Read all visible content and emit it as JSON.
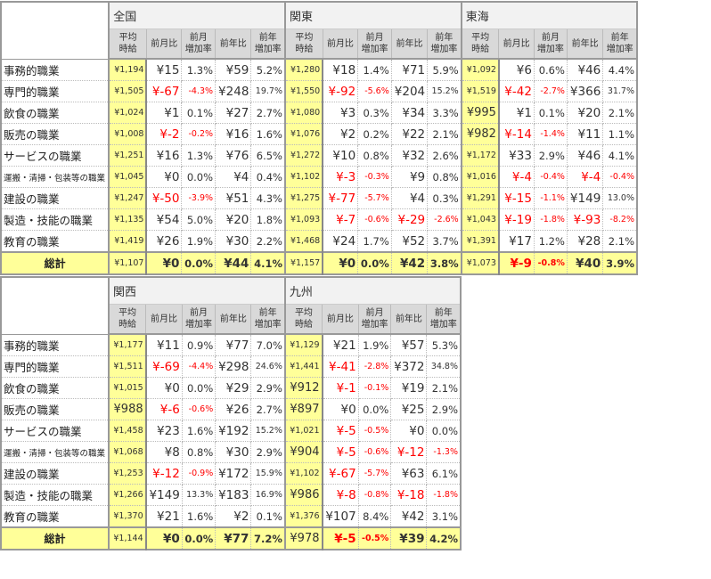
{
  "columns": [
    "平均\n時給",
    "前月比",
    "前月\n増加率",
    "前年比",
    "前年\n増加率"
  ],
  "row_labels": [
    "事務的職業",
    "専門的職業",
    "飲食の職業",
    "販売の職業",
    "サービスの職業",
    "運搬・清掃・包装等の職業",
    "建設の職業",
    "製造・技能の職業",
    "教育の職業",
    "総計"
  ],
  "tables": [
    {
      "regions": [
        {
          "name": "全国",
          "rows": [
            [
              "¥1,194",
              "¥15",
              "1.3%",
              "¥59",
              "5.2%"
            ],
            [
              "¥1,505",
              "¥-67",
              "-4.3%",
              "¥248",
              "19.7%"
            ],
            [
              "¥1,024",
              "¥1",
              "0.1%",
              "¥27",
              "2.7%"
            ],
            [
              "¥1,008",
              "¥-2",
              "-0.2%",
              "¥16",
              "1.6%"
            ],
            [
              "¥1,251",
              "¥16",
              "1.3%",
              "¥76",
              "6.5%"
            ],
            [
              "¥1,045",
              "¥0",
              "0.0%",
              "¥4",
              "0.4%"
            ],
            [
              "¥1,247",
              "¥-50",
              "-3.9%",
              "¥51",
              "4.3%"
            ],
            [
              "¥1,135",
              "¥54",
              "5.0%",
              "¥20",
              "1.8%"
            ],
            [
              "¥1,419",
              "¥26",
              "1.9%",
              "¥30",
              "2.2%"
            ],
            [
              "¥1,107",
              "¥0",
              "0.0%",
              "¥44",
              "4.1%"
            ]
          ]
        },
        {
          "name": "関東",
          "rows": [
            [
              "¥1,280",
              "¥18",
              "1.4%",
              "¥71",
              "5.9%"
            ],
            [
              "¥1,550",
              "¥-92",
              "-5.6%",
              "¥204",
              "15.2%"
            ],
            [
              "¥1,080",
              "¥3",
              "0.3%",
              "¥34",
              "3.3%"
            ],
            [
              "¥1,076",
              "¥2",
              "0.2%",
              "¥22",
              "2.1%"
            ],
            [
              "¥1,272",
              "¥10",
              "0.8%",
              "¥32",
              "2.6%"
            ],
            [
              "¥1,102",
              "¥-3",
              "-0.3%",
              "¥9",
              "0.8%"
            ],
            [
              "¥1,275",
              "¥-77",
              "-5.7%",
              "¥4",
              "0.3%"
            ],
            [
              "¥1,093",
              "¥-7",
              "-0.6%",
              "¥-29",
              "-2.6%"
            ],
            [
              "¥1,468",
              "¥24",
              "1.7%",
              "¥52",
              "3.7%"
            ],
            [
              "¥1,157",
              "¥0",
              "0.0%",
              "¥42",
              "3.8%"
            ]
          ]
        },
        {
          "name": "東海",
          "rows": [
            [
              "¥1,092",
              "¥6",
              "0.6%",
              "¥46",
              "4.4%"
            ],
            [
              "¥1,519",
              "¥-42",
              "-2.7%",
              "¥366",
              "31.7%"
            ],
            [
              "¥995",
              "¥1",
              "0.1%",
              "¥20",
              "2.1%"
            ],
            [
              "¥982",
              "¥-14",
              "-1.4%",
              "¥11",
              "1.1%"
            ],
            [
              "¥1,172",
              "¥33",
              "2.9%",
              "¥46",
              "4.1%"
            ],
            [
              "¥1,016",
              "¥-4",
              "-0.4%",
              "¥-4",
              "-0.4%"
            ],
            [
              "¥1,291",
              "¥-15",
              "-1.1%",
              "¥149",
              "13.0%"
            ],
            [
              "¥1,043",
              "¥-19",
              "-1.8%",
              "¥-93",
              "-8.2%"
            ],
            [
              "¥1,391",
              "¥17",
              "1.2%",
              "¥28",
              "2.1%"
            ],
            [
              "¥1,073",
              "¥-9",
              "-0.8%",
              "¥40",
              "3.9%"
            ]
          ]
        }
      ]
    },
    {
      "regions": [
        {
          "name": "関西",
          "rows": [
            [
              "¥1,177",
              "¥11",
              "0.9%",
              "¥77",
              "7.0%"
            ],
            [
              "¥1,511",
              "¥-69",
              "-4.4%",
              "¥298",
              "24.6%"
            ],
            [
              "¥1,015",
              "¥0",
              "0.0%",
              "¥29",
              "2.9%"
            ],
            [
              "¥988",
              "¥-6",
              "-0.6%",
              "¥26",
              "2.7%"
            ],
            [
              "¥1,458",
              "¥23",
              "1.6%",
              "¥192",
              "15.2%"
            ],
            [
              "¥1,068",
              "¥8",
              "0.8%",
              "¥30",
              "2.9%"
            ],
            [
              "¥1,253",
              "¥-12",
              "-0.9%",
              "¥172",
              "15.9%"
            ],
            [
              "¥1,266",
              "¥149",
              "13.3%",
              "¥183",
              "16.9%"
            ],
            [
              "¥1,370",
              "¥21",
              "1.6%",
              "¥2",
              "0.1%"
            ],
            [
              "¥1,144",
              "¥0",
              "0.0%",
              "¥77",
              "7.2%"
            ]
          ]
        },
        {
          "name": "九州",
          "rows": [
            [
              "¥1,129",
              "¥21",
              "1.9%",
              "¥57",
              "5.3%"
            ],
            [
              "¥1,441",
              "¥-41",
              "-2.8%",
              "¥372",
              "34.8%"
            ],
            [
              "¥912",
              "¥-1",
              "-0.1%",
              "¥19",
              "2.1%"
            ],
            [
              "¥897",
              "¥0",
              "0.0%",
              "¥25",
              "2.9%"
            ],
            [
              "¥1,021",
              "¥-5",
              "-0.5%",
              "¥0",
              "0.0%"
            ],
            [
              "¥904",
              "¥-5",
              "-0.6%",
              "¥-12",
              "-1.3%"
            ],
            [
              "¥1,102",
              "¥-67",
              "-5.7%",
              "¥63",
              "6.1%"
            ],
            [
              "¥986",
              "¥-8",
              "-0.8%",
              "¥-18",
              "-1.8%"
            ],
            [
              "¥1,376",
              "¥107",
              "8.4%",
              "¥42",
              "3.1%"
            ],
            [
              "¥978",
              "¥-5",
              "-0.5%",
              "¥39",
              "4.2%"
            ]
          ]
        }
      ]
    }
  ]
}
